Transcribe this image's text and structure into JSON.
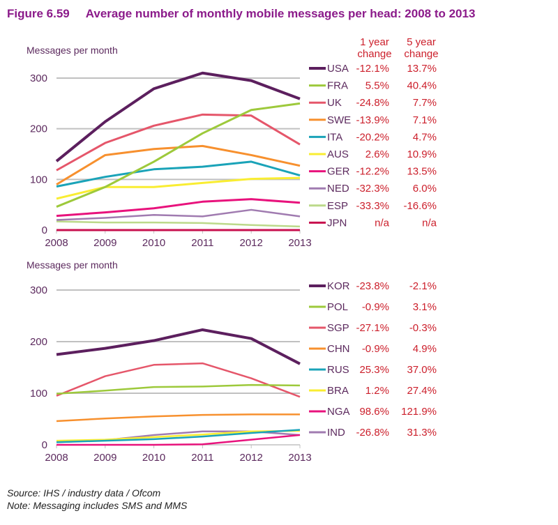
{
  "title": "Figure 6.59     Average number of monthly mobile messages per head: 2008 to 2013",
  "change_headers": {
    "one_year": [
      "1 year",
      "change"
    ],
    "five_year": [
      "5 year",
      "change"
    ]
  },
  "source": "Source: IHS / industry data / Ofcom",
  "note": "Note: Messaging includes SMS and MMS",
  "chart_data": [
    {
      "type": "line",
      "ylabel": "Messages per month",
      "x": [
        "2008",
        "2009",
        "2010",
        "2011",
        "2012",
        "2013"
      ],
      "ylim": [
        0,
        300
      ],
      "yticks": [
        "0",
        "100",
        "200",
        "300"
      ],
      "grid": true,
      "legend": "right",
      "series": [
        {
          "name": "USA",
          "color": "#5c1f5e",
          "one_year": "-12.1%",
          "five_year": "13.7%",
          "values": [
            136,
            214,
            279,
            310,
            295,
            259
          ]
        },
        {
          "name": "FRA",
          "color": "#9dc93b",
          "one_year": "5.5%",
          "five_year": "40.4%",
          "values": [
            46,
            85,
            135,
            191,
            237,
            250
          ]
        },
        {
          "name": "UK",
          "color": "#e5566a",
          "one_year": "-24.8%",
          "five_year": "7.7%",
          "values": [
            118,
            172,
            206,
            228,
            226,
            169
          ]
        },
        {
          "name": "SWE",
          "color": "#f7902e",
          "one_year": "-13.9%",
          "five_year": "7.1%",
          "values": [
            90,
            148,
            160,
            166,
            148,
            127
          ]
        },
        {
          "name": "ITA",
          "color": "#1aa3b8",
          "one_year": "-20.2%",
          "five_year": "4.7%",
          "values": [
            86,
            105,
            120,
            125,
            135,
            108
          ]
        },
        {
          "name": "AUS",
          "color": "#f9ed32",
          "one_year": "2.6%",
          "five_year": "10.9%",
          "values": [
            62,
            85,
            85,
            93,
            101,
            103
          ]
        },
        {
          "name": "GER",
          "color": "#e8127c",
          "one_year": "-12.2%",
          "five_year": "13.5%",
          "values": [
            28,
            35,
            43,
            56,
            61,
            54
          ]
        },
        {
          "name": "NED",
          "color": "#a07bb0",
          "one_year": "-32.3%",
          "five_year": "6.0%",
          "values": [
            20,
            24,
            30,
            27,
            40,
            27
          ]
        },
        {
          "name": "ESP",
          "color": "#bcd98a",
          "one_year": "-33.3%",
          "five_year": "-16.6%",
          "values": [
            17,
            15,
            15,
            14,
            10,
            7
          ]
        },
        {
          "name": "JPN",
          "color": "#c8104e",
          "one_year": "n/a",
          "five_year": "n/a",
          "values": [
            0,
            0,
            0,
            0,
            0,
            0
          ]
        }
      ]
    },
    {
      "type": "line",
      "ylabel": "Messages per month",
      "x": [
        "2008",
        "2009",
        "2010",
        "2011",
        "2012",
        "2013"
      ],
      "ylim": [
        0,
        300
      ],
      "yticks": [
        "0",
        "100",
        "200",
        "300"
      ],
      "grid": true,
      "legend": "right",
      "series": [
        {
          "name": "KOR",
          "color": "#5c1f5e",
          "one_year": "-23.8%",
          "five_year": "-2.1%",
          "values": [
            175,
            187,
            202,
            223,
            206,
            157
          ]
        },
        {
          "name": "POL",
          "color": "#9dc93b",
          "one_year": "-0.9%",
          "five_year": "3.1%",
          "values": [
            99,
            105,
            112,
            113,
            116,
            115
          ]
        },
        {
          "name": "SGP",
          "color": "#e5566a",
          "one_year": "-27.1%",
          "five_year": "-0.3%",
          "values": [
            95,
            133,
            155,
            158,
            129,
            93
          ]
        },
        {
          "name": "CHN",
          "color": "#f7902e",
          "one_year": "-0.9%",
          "five_year": "4.9%",
          "values": [
            46,
            51,
            55,
            58,
            59,
            59
          ]
        },
        {
          "name": "RUS",
          "color": "#1aa3b8",
          "one_year": "25.3%",
          "five_year": "37.0%",
          "values": [
            5,
            8,
            11,
            16,
            23,
            29
          ]
        },
        {
          "name": "BRA",
          "color": "#f9ed32",
          "one_year": "1.2%",
          "five_year": "27.4%",
          "values": [
            8,
            10,
            15,
            20,
            26,
            27
          ]
        },
        {
          "name": "NGA",
          "color": "#e8127c",
          "one_year": "98.6%",
          "five_year": "121.9%",
          "values": [
            0,
            0,
            0,
            1,
            10,
            19
          ]
        },
        {
          "name": "IND",
          "color": "#a07bb0",
          "one_year": "-26.8%",
          "five_year": "31.3%",
          "values": [
            5,
            9,
            19,
            26,
            26,
            19
          ]
        }
      ]
    }
  ]
}
